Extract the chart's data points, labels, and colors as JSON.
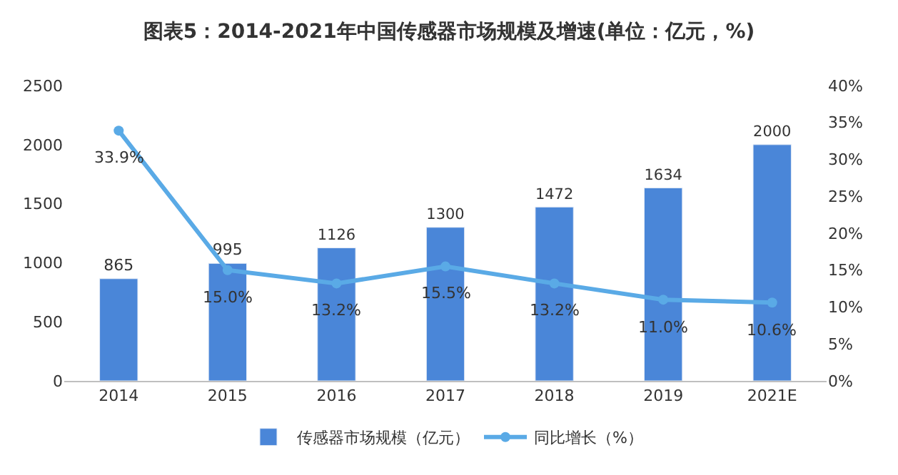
{
  "chart_data": {
    "type": "bar",
    "title": "图表5：2014-2021年中国传感器市场规模及增速(单位：亿元，%)",
    "categories": [
      "2014",
      "2015",
      "2016",
      "2017",
      "2018",
      "2019",
      "2021E"
    ],
    "series": [
      {
        "name": "传感器市场规模（亿元）",
        "color": "#4a86d8",
        "values": [
          865,
          995,
          1126,
          1300,
          1472,
          1634,
          2000
        ],
        "value_labels": [
          "865",
          "995",
          "1126",
          "1300",
          "1472",
          "1634",
          "2000"
        ]
      },
      {
        "name": "同比增长（%）",
        "type": "line",
        "axis": "y2",
        "color": "#5aaae6",
        "marker": "circle",
        "values": [
          33.9,
          15.0,
          13.2,
          15.5,
          13.2,
          11.0,
          10.6
        ],
        "value_labels": [
          "33.9%",
          "15.0%",
          "13.2%",
          "15.5%",
          "13.2%",
          "11.0%",
          "10.6%"
        ]
      }
    ],
    "ylim": [
      0,
      2500
    ],
    "yticks": [
      0,
      500,
      1000,
      1500,
      2000,
      2500
    ],
    "y2lim": [
      0,
      40
    ],
    "y2ticks": [
      {
        "value": 0,
        "label": "0%"
      },
      {
        "value": 5,
        "label": "5%"
      },
      {
        "value": 10,
        "label": "10%"
      },
      {
        "value": 15,
        "label": "15%"
      },
      {
        "value": 20,
        "label": "20%"
      },
      {
        "value": 25,
        "label": "25%"
      },
      {
        "value": 30,
        "label": "30%"
      },
      {
        "value": 35,
        "label": "35%"
      },
      {
        "value": 40,
        "label": "40%"
      }
    ],
    "legend": "bottom"
  }
}
